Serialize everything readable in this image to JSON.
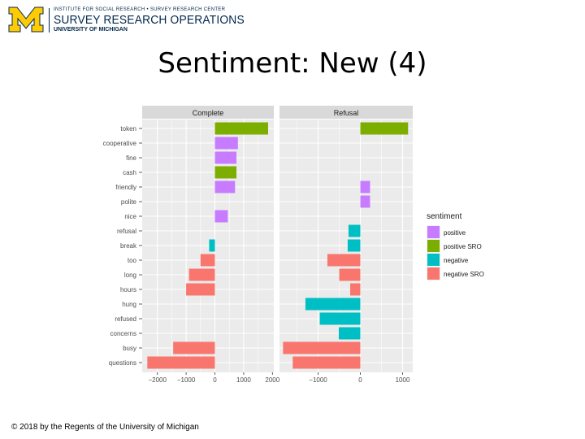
{
  "header": {
    "top_line": "INSTITUTE FOR SOCIAL RESEARCH • SURVEY RESEARCH CENTER",
    "main_line": "SURVEY RESEARCH OPERATIONS",
    "sub_line": "UNIVERSITY OF MICHIGAN",
    "logo_letter": "M",
    "colors": {
      "maize": "#ffcb05",
      "blue": "#00274c"
    }
  },
  "slide": {
    "title": "Sentiment: New (4)"
  },
  "footer": {
    "text": "© 2018 by the Regents of the University of Michigan"
  },
  "chart_data": {
    "type": "bar",
    "orientation": "horizontal",
    "facets": [
      "Complete",
      "Refusal"
    ],
    "categories": [
      "token",
      "cooperative",
      "fine",
      "cash",
      "friendly",
      "polite",
      "nice",
      "refusal",
      "break",
      "too",
      "long",
      "hours",
      "hung",
      "refused",
      "concerns",
      "busy",
      "questions"
    ],
    "category_sentiment": [
      "positive SRO",
      "positive",
      "positive",
      "positive SRO",
      "positive",
      "positive",
      "positive",
      "negative",
      "negative",
      "negative SRO",
      "negative SRO",
      "negative SRO",
      "negative",
      "negative",
      "negative",
      "negative SRO",
      "negative SRO"
    ],
    "values": {
      "Complete": [
        1850,
        800,
        750,
        750,
        700,
        null,
        450,
        null,
        -200,
        -500,
        -900,
        -1000,
        null,
        null,
        null,
        -1450,
        -2350
      ],
      "Refusal": [
        1130,
        null,
        null,
        null,
        230,
        230,
        null,
        -280,
        -300,
        -780,
        -500,
        -240,
        -1300,
        -960,
        -510,
        -1830,
        -1600
      ]
    },
    "x_ticks": {
      "Complete": [
        "-2000",
        "-1000",
        "0",
        "1000",
        "2000"
      ],
      "Refusal": [
        "-1000",
        "0",
        "1000"
      ]
    },
    "xlim": {
      "Complete": [
        -2400,
        1950
      ],
      "Refusal": [
        -1800,
        1250
      ]
    },
    "legend": {
      "title": "sentiment",
      "position": "right",
      "items": [
        {
          "label": "positive",
          "color": "#c77cff"
        },
        {
          "label": "positive SRO",
          "color": "#7cae00"
        },
        {
          "label": "negative",
          "color": "#00bfc4"
        },
        {
          "label": "negative SRO",
          "color": "#f8766d"
        }
      ]
    },
    "grid": true,
    "panel_background": "#ebebeb",
    "strip_background": "#d9d9d9"
  }
}
